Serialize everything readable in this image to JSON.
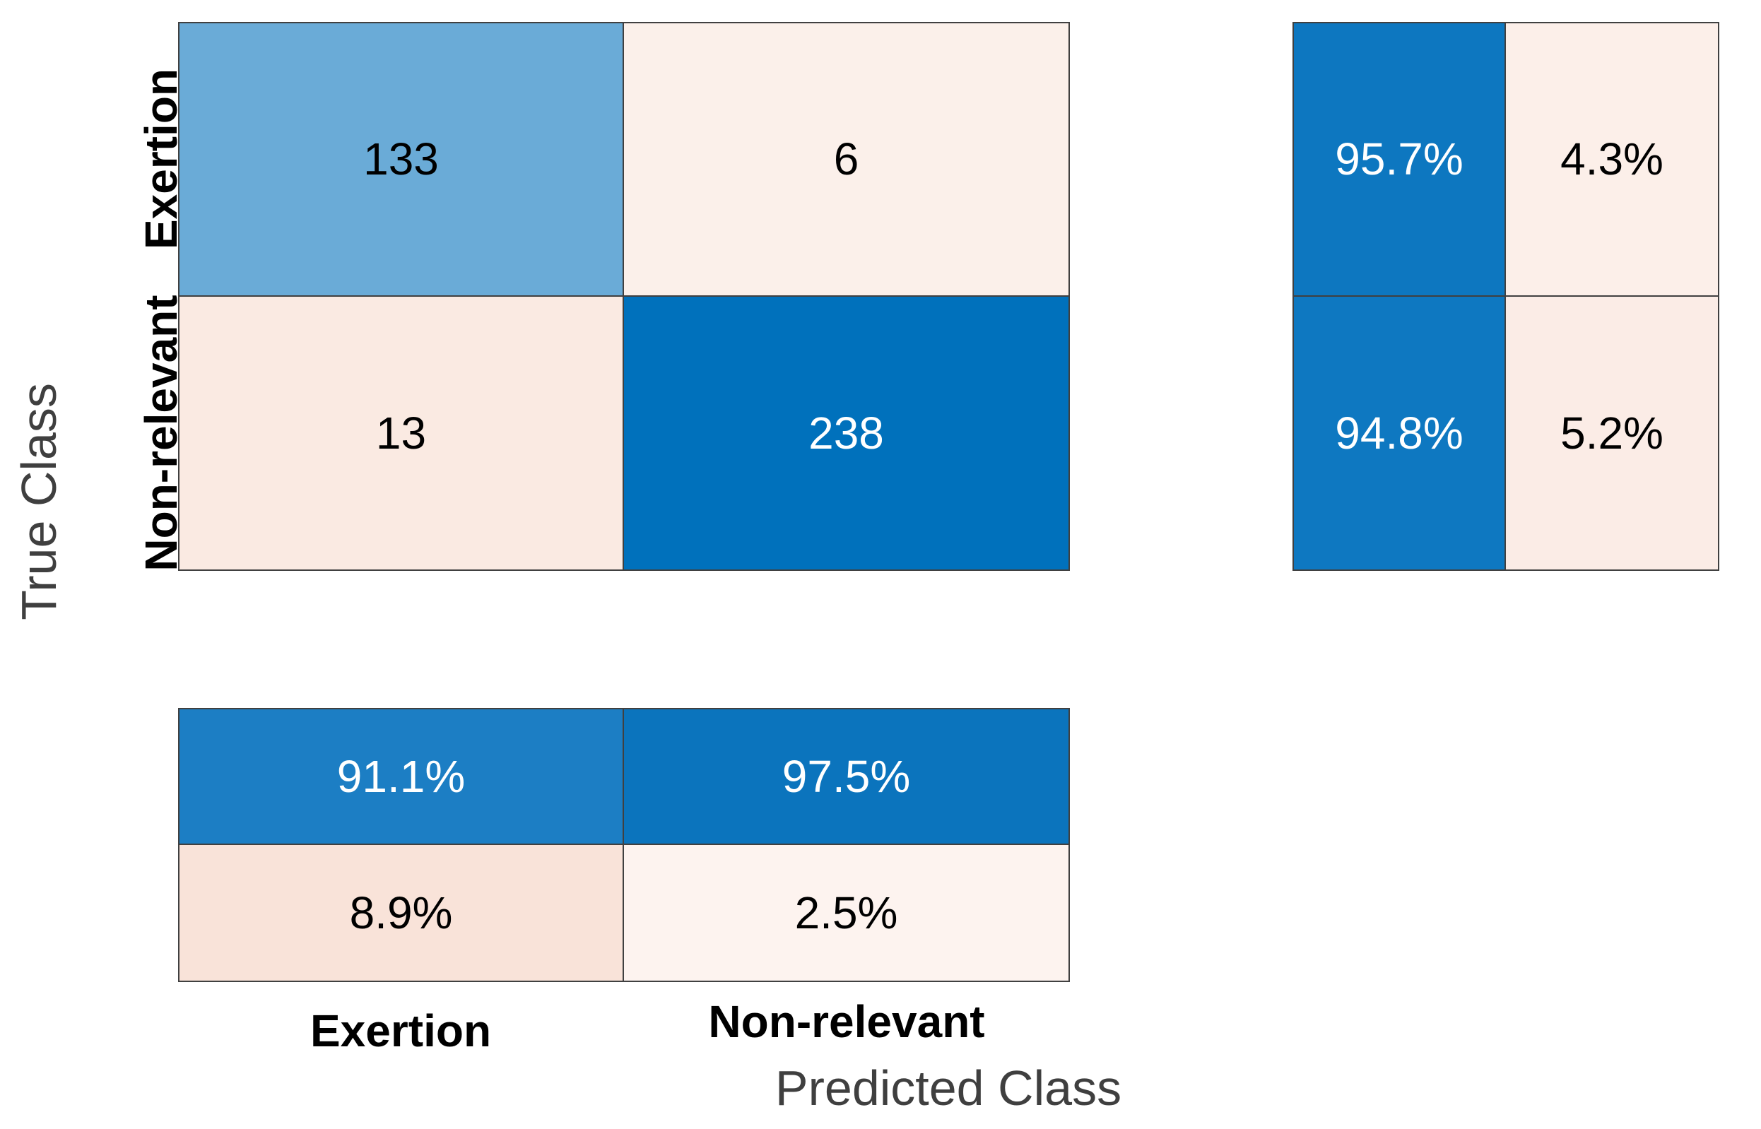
{
  "chart_data": {
    "type": "heatmap",
    "subtype": "confusion-matrix",
    "title": "",
    "classes": [
      "Exertion",
      "Non-relevant"
    ],
    "xlabel": "Predicted Class",
    "ylabel": "True Class",
    "matrix_counts": [
      [
        133,
        6
      ],
      [
        13,
        238
      ]
    ],
    "row_summary_percent": [
      [
        95.7,
        4.3
      ],
      [
        94.8,
        5.2
      ]
    ],
    "column_summary_percent": [
      [
        91.1,
        97.5
      ],
      [
        8.9,
        2.5
      ]
    ],
    "grid": "on",
    "legend_position": "none",
    "layout": {
      "row_summary_position": "right",
      "column_summary_position": "bottom"
    }
  },
  "axes": {
    "ylabel": "True Class",
    "xlabel": "Predicted Class",
    "row_ticks": [
      "Exertion",
      "Non-relevant"
    ],
    "col_ticks": [
      "Exertion",
      "Non-relevant"
    ]
  },
  "cells": {
    "main": [
      [
        {
          "v": "133",
          "bg": "#6aabd7",
          "fg": "#000000"
        },
        {
          "v": "6",
          "bg": "#fbf0ea",
          "fg": "#000000"
        }
      ],
      [
        {
          "v": "13",
          "bg": "#faeae2",
          "fg": "#000000"
        },
        {
          "v": "238",
          "bg": "#0071bc",
          "fg": "#ffffff"
        }
      ]
    ],
    "row_summary": [
      [
        {
          "v": "95.7%",
          "bg": "#0d77c0",
          "fg": "#ffffff"
        },
        {
          "v": "4.3%",
          "bg": "#fcefe9",
          "fg": "#000000"
        }
      ],
      [
        {
          "v": "94.8%",
          "bg": "#0e78c1",
          "fg": "#ffffff"
        },
        {
          "v": "5.2%",
          "bg": "#fbece6",
          "fg": "#000000"
        }
      ]
    ],
    "col_summary": [
      [
        {
          "v": "91.1%",
          "bg": "#1c7ec4",
          "fg": "#ffffff"
        },
        {
          "v": "97.5%",
          "bg": "#0b74bd",
          "fg": "#ffffff"
        }
      ],
      [
        {
          "v": "8.9%",
          "bg": "#f9e3d9",
          "fg": "#000000"
        },
        {
          "v": "2.5%",
          "bg": "#fdf3ef",
          "fg": "#000000"
        }
      ]
    ]
  },
  "colors": {
    "diagonal_base": "#0072bd",
    "offdiagonal_base": "#d95319",
    "grid_line": "#404040",
    "axis_title_text": "#3f3f3f",
    "tick_label_text": "#000000",
    "background": "#ffffff"
  }
}
